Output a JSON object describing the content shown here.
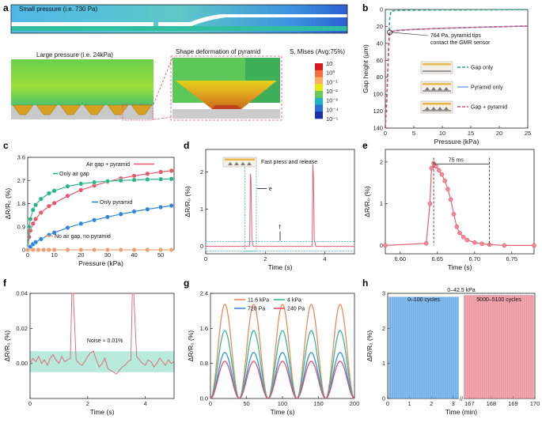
{
  "panels": {
    "a": {
      "label": "a",
      "small_pressure": "Small pressure (i.e. 730 Pa)",
      "large_pressure": "Large pressure (i.e. 24kPa)",
      "shape_deformation": "Shape deformation of pyramid",
      "colorbar_title": "S, Mises (Avg:75%)",
      "colorbar_labels": [
        "10",
        "10⁰",
        "10⁻¹",
        "10⁻²",
        "10⁻³",
        "10⁻⁴",
        "10⁻⁵"
      ],
      "colorbar_colors": [
        "#d7191c",
        "#f46d43",
        "#fdae61",
        "#e6e617",
        "#66c85a",
        "#1fb3c4",
        "#2b6fd6",
        "#1a2fa8"
      ]
    },
    "b": {
      "label": "b",
      "annotation": "764 Pa, pyramid tips\ncontact the GMR sensor"
    },
    "c": {
      "label": "c"
    },
    "d": {
      "label": "d",
      "annotation": "Fast press and release",
      "e_marker": "e",
      "f_marker": "f"
    },
    "e": {
      "label": "e",
      "annotation": "75 ms"
    },
    "f": {
      "label": "f",
      "annotation": "Noise ≈ 0.01%"
    },
    "g": {
      "label": "g"
    },
    "h": {
      "label": "h",
      "annotation_top": "0–42.5 kPa",
      "annotation_left": "0–100 cycles",
      "annotation_right": "5000–5100 cycles",
      "colors": [
        "#4a9be0",
        "#e87a87"
      ]
    }
  },
  "chart_data": [
    {
      "panel": "b",
      "type": "line",
      "xlabel": "Pressure (kPa)",
      "ylabel": "Gap height (μm)",
      "xlim": [
        0,
        25
      ],
      "ylim": [
        0,
        140
      ],
      "y_inverted": true,
      "xticks": [
        0,
        5,
        10,
        15,
        20,
        25
      ],
      "yticks": [
        0,
        20,
        40,
        60,
        80,
        100,
        120,
        140
      ],
      "series": [
        {
          "name": "Gap only",
          "color": "#2aa889",
          "dash": "dash",
          "x": [
            0,
            0.3,
            0.6,
            0.764,
            1,
            2,
            5,
            10,
            15,
            20,
            25
          ],
          "y": [
            140,
            100,
            40,
            10,
            2,
            1,
            0.8,
            0.6,
            0.5,
            0.4,
            0.3
          ]
        },
        {
          "name": "Pyramid only",
          "color": "#7fb2e5",
          "dash": "solid",
          "x": [
            0.764,
            2,
            5,
            10,
            15,
            20,
            25
          ],
          "y": [
            27,
            24.5,
            23.5,
            22.2,
            21.2,
            20.3,
            19.5
          ]
        },
        {
          "name": "Gap + pyramid",
          "color": "#e0506a",
          "dash": "dash",
          "x": [
            0,
            0.3,
            0.6,
            0.764,
            1,
            2,
            5,
            10,
            15,
            20,
            25
          ],
          "y": [
            140,
            95,
            45,
            27,
            26,
            25,
            23.5,
            22.2,
            21.2,
            20.3,
            19.5
          ]
        }
      ],
      "legend_position": "right"
    },
    {
      "panel": "c",
      "type": "scatter",
      "xlabel": "Pressure (kPa)",
      "ylabel": "ΔR/R₀ (%)",
      "xlim": [
        0,
        55
      ],
      "ylim": [
        0,
        3.6
      ],
      "xticks": [
        0,
        10,
        20,
        30,
        40,
        50
      ],
      "yticks": [
        0,
        0.9,
        1.8,
        2.7,
        3.6
      ],
      "series": [
        {
          "name": "Air gap + pyramid",
          "color": "#e8566a",
          "x": [
            0,
            0.5,
            1,
            2,
            3,
            5,
            8,
            10,
            15,
            20,
            25,
            30,
            35,
            40,
            45,
            50,
            54
          ],
          "y": [
            0,
            0.5,
            0.75,
            1.02,
            1.2,
            1.45,
            1.7,
            1.82,
            2.1,
            2.33,
            2.5,
            2.65,
            2.78,
            2.88,
            2.96,
            3.03,
            3.08
          ]
        },
        {
          "name": "Only air gap",
          "color": "#2ab48a",
          "x": [
            0,
            0.5,
            1,
            2,
            3,
            5,
            8,
            10,
            15,
            20,
            25,
            30,
            35,
            40,
            45,
            50,
            54
          ],
          "y": [
            0,
            0.9,
            1.2,
            1.55,
            1.75,
            1.98,
            2.2,
            2.3,
            2.47,
            2.57,
            2.63,
            2.67,
            2.7,
            2.72,
            2.74,
            2.75,
            2.76
          ]
        },
        {
          "name": "Only pyramid",
          "color": "#2f86d6",
          "x": [
            0,
            1,
            2,
            3,
            5,
            8,
            10,
            15,
            20,
            25,
            30,
            35,
            40,
            45,
            50,
            54
          ],
          "y": [
            0,
            0.12,
            0.22,
            0.3,
            0.42,
            0.58,
            0.67,
            0.86,
            1.02,
            1.16,
            1.28,
            1.39,
            1.49,
            1.58,
            1.66,
            1.72
          ]
        },
        {
          "name": "No air gap, no pyramid",
          "color": "#f0a070",
          "x": [
            0,
            2,
            4,
            6,
            8,
            10,
            15,
            20,
            25,
            30,
            35,
            40,
            45,
            50,
            54
          ],
          "y": [
            0,
            0,
            0,
            0,
            0,
            0,
            0,
            0,
            0,
            0,
            0,
            0,
            0,
            0,
            0
          ]
        }
      ]
    },
    {
      "panel": "d",
      "type": "line",
      "xlabel": "Time (s)",
      "ylabel": "ΔR/R₀ (%)",
      "xlim": [
        0,
        5
      ],
      "ylim": [
        -0.2,
        2.6
      ],
      "xticks": [
        0,
        2,
        4
      ],
      "yticks": [
        0,
        1,
        2
      ],
      "series": [
        {
          "name": "",
          "color": "#e06070",
          "x": [
            0,
            1.48,
            1.5,
            1.52,
            1.55,
            1.6,
            3.58,
            3.6,
            3.62,
            3.65,
            3.7,
            5
          ],
          "y": [
            0,
            0,
            1.95,
            1.8,
            0.2,
            0,
            0,
            2.2,
            1.9,
            0.2,
            0,
            0
          ]
        }
      ]
    },
    {
      "panel": "e",
      "type": "line",
      "xlabel": "Time (s)",
      "ylabel": "ΔR/R₀ (%)",
      "xlim": [
        6.58,
        6.78
      ],
      "ylim": [
        -0.2,
        2.3
      ],
      "xticks": [
        6.6,
        6.65,
        6.7,
        6.75
      ],
      "yticks": [
        0,
        1,
        2
      ],
      "series": [
        {
          "name": "",
          "color": "#e06070",
          "x": [
            6.58,
            6.635,
            6.64,
            6.642,
            6.645,
            6.648,
            6.652,
            6.656,
            6.66,
            6.664,
            6.668,
            6.672,
            6.676,
            6.68,
            6.685,
            6.69,
            6.7,
            6.71,
            6.72,
            6.74,
            6.78
          ],
          "y": [
            0,
            0.05,
            1.0,
            1.85,
            1.97,
            1.9,
            1.8,
            1.7,
            1.55,
            1.35,
            1.1,
            0.75,
            0.45,
            0.3,
            0.2,
            0.13,
            0.07,
            0.04,
            0.02,
            0,
            0
          ]
        }
      ]
    },
    {
      "panel": "f",
      "type": "line",
      "xlabel": "Time (s)",
      "ylabel": "ΔR/R₀ (%)",
      "xlim": [
        0,
        5
      ],
      "ylim": [
        -0.02,
        0.04
      ],
      "xticks": [
        0,
        2,
        4
      ],
      "yticks": [
        0,
        0.02,
        0.04
      ],
      "series": [
        {
          "name": "",
          "color": "#e06070",
          "x": [
            0,
            0.1,
            0.2,
            0.3,
            0.4,
            0.5,
            0.6,
            0.7,
            0.8,
            0.9,
            1.0,
            1.1,
            1.2,
            1.3,
            1.4,
            1.45,
            1.5,
            1.6,
            1.7,
            1.8,
            1.9,
            2.0,
            2.1,
            2.2,
            2.3,
            2.4,
            2.5,
            2.6,
            2.7,
            2.8,
            2.9,
            3.0,
            3.1,
            3.2,
            3.3,
            3.4,
            3.5,
            3.55,
            3.6,
            3.7,
            3.8,
            3.9,
            4.0,
            4.1,
            4.2,
            4.3,
            4.4,
            4.5,
            4.6,
            4.7,
            4.8,
            4.9,
            5.0
          ],
          "y": [
            0.0,
            0.003,
            0.001,
            0.004,
            0.0,
            0.002,
            -0.001,
            0.003,
            0.005,
            0.002,
            0.0,
            0.004,
            0.001,
            0.002,
            0.003,
            0.04,
            0.04,
            0.002,
            0.0,
            -0.001,
            0.001,
            0.004,
            0.006,
            0.007,
            0.002,
            -0.002,
            0.0,
            0.003,
            -0.003,
            -0.004,
            -0.005,
            -0.006,
            -0.004,
            -0.002,
            -0.001,
            0.001,
            0.002,
            0.04,
            0.04,
            0.004,
            0.002,
            0.0,
            -0.001,
            0.002,
            0.001,
            -0.002,
            0.0,
            0.003,
            0.001,
            -0.001,
            0.002,
            0.0,
            0.001
          ]
        }
      ],
      "noise_band": [
        -0.005,
        0.007
      ]
    },
    {
      "panel": "g",
      "type": "line",
      "xlabel": "Time (s)",
      "ylabel": "ΔR/R₀ (%)",
      "xlim": [
        0,
        200
      ],
      "ylim": [
        0,
        2.4
      ],
      "xticks": [
        0,
        50,
        100,
        150,
        200
      ],
      "yticks": [
        0,
        0.8,
        1.6,
        2.4
      ],
      "period": 40,
      "series": [
        {
          "name": "11.6 kPa",
          "color": "#ec8a58",
          "peak": 2.15
        },
        {
          "name": "4 kPa",
          "color": "#34b89a",
          "peak": 1.55
        },
        {
          "name": "720 Pa",
          "color": "#3b8fdc",
          "peak": 1.05
        },
        {
          "name": "240 Pa",
          "color": "#e0506a",
          "peak": 0.85
        }
      ]
    },
    {
      "panel": "h",
      "type": "line",
      "xlabel": "Time (min)",
      "ylabel": "ΔR/R₀ (%)",
      "ylim": [
        0,
        3
      ],
      "yticks": [
        0,
        1,
        2,
        3
      ],
      "x_segments": [
        {
          "xlim": [
            0,
            3.3
          ],
          "xticks": [
            0,
            1,
            2,
            3
          ]
        },
        {
          "xlim": [
            166.7,
            170
          ],
          "xticks": [
            167,
            168,
            169,
            170
          ]
        }
      ],
      "series": [
        {
          "name": "0–100 cycles",
          "color": "#4a9be0",
          "min": 0,
          "max": 2.9
        },
        {
          "name": "5000–5100 cycles",
          "color": "#e87a87",
          "min": 0,
          "max": 2.95
        }
      ]
    }
  ]
}
